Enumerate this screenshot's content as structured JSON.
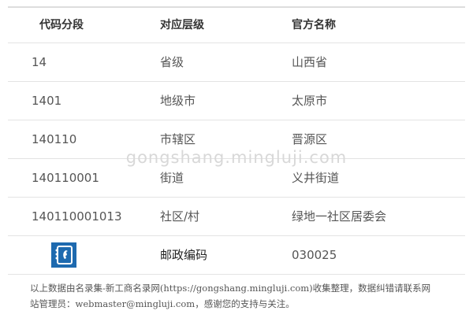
{
  "headers": [
    "代码分段",
    "对应层级",
    "官方名称"
  ],
  "rows": [
    [
      "14",
      "省级",
      "山西省"
    ],
    [
      "1401",
      "地级市",
      "太原市"
    ],
    [
      "140110",
      "市辖区",
      "晋源区"
    ],
    [
      "140110001",
      "街道",
      "义井街道"
    ],
    [
      "140110001013",
      "社区/村",
      "绿地一社区居委会"
    ]
  ],
  "postal": {
    "icon": "phone-book-icon",
    "label": "邮政编码",
    "value": "030025"
  },
  "watermark": "gongshang.mingluji.com",
  "footer": {
    "line1": "以上数据由名录集-新工商名录网(https://gongshang.mingluji.com)收集整理，数据纠错请联系网",
    "line2": "站管理员：webmaster@mingluji.com，感谢您的支持与关注。"
  },
  "colors": {
    "icon_bg": "#1e6aaf",
    "watermark": "#d8d8d8"
  }
}
